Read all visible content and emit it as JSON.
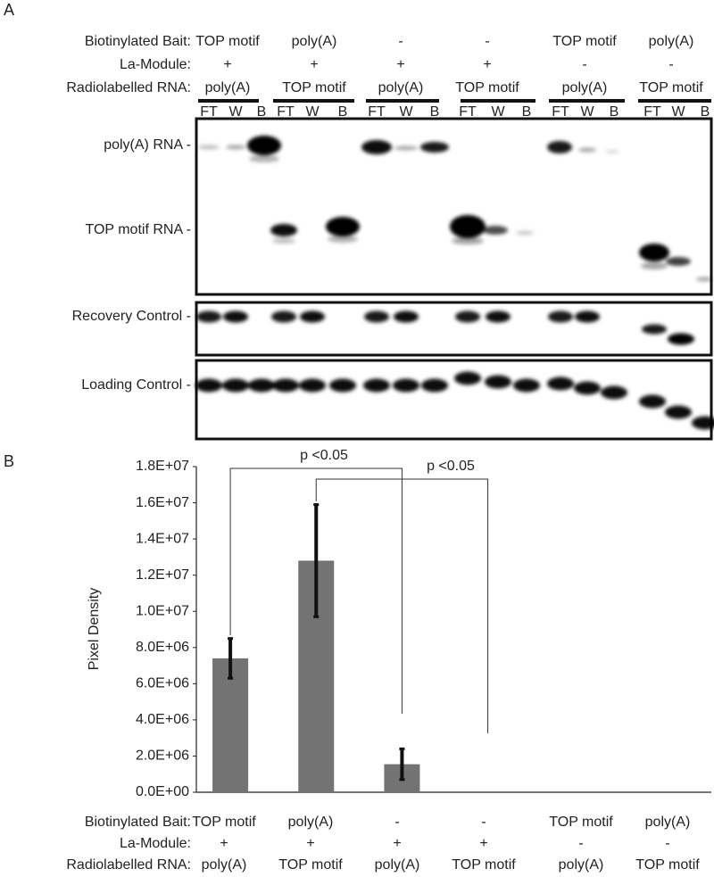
{
  "panel_a": {
    "label": "A",
    "row_labels": [
      "Biotinylated Bait:",
      "La-Module:",
      "Radiolabelled RNA:"
    ],
    "category_rows": [
      [
        "TOP motif",
        "poly(A)",
        "-",
        "-",
        "TOP motif",
        "poly(A)"
      ],
      [
        "+",
        "+",
        "+",
        "+",
        "-",
        "-"
      ],
      [
        "poly(A)",
        "TOP motif",
        "poly(A)",
        "TOP motif",
        "poly(A)",
        "TOP motif"
      ]
    ],
    "lane_labels": [
      "FT",
      "W",
      "B"
    ],
    "band_labels": [
      "poly(A) RNA -",
      "TOP motif RNA -",
      "Recovery Control -",
      "Loading Control -"
    ]
  },
  "chart_data": {
    "type": "bar",
    "label": "B",
    "y_label": "Pixel Density",
    "row_labels": [
      "Biotinylated Bait:",
      "La-Module:",
      "Radiolabelled RNA:"
    ],
    "category_rows": [
      [
        "TOP motif",
        "poly(A)",
        "-",
        "-",
        "TOP motif",
        "poly(A)"
      ],
      [
        "+",
        "+",
        "+",
        "+",
        "-",
        "-"
      ],
      [
        "poly(A)",
        "TOP motif",
        "poly(A)",
        "TOP motif",
        "poly(A)",
        "TOP motif"
      ]
    ],
    "values": [
      7400000,
      12800000,
      1550000,
      0,
      0,
      0
    ],
    "errors": [
      1100000,
      3100000,
      850000,
      null,
      null,
      null
    ],
    "color": "#737373",
    "ylim": [
      0,
      18000000
    ],
    "yticks": [
      {
        "value": 0,
        "label": "0.0E+00"
      },
      {
        "value": 2000000,
        "label": "2.0E+06"
      },
      {
        "value": 4000000,
        "label": "4.0E+06"
      },
      {
        "value": 6000000,
        "label": "6.0E+06"
      },
      {
        "value": 8000000,
        "label": "8.0E+06"
      },
      {
        "value": 10000000,
        "label": "1.0E+07"
      },
      {
        "value": 12000000,
        "label": "1.2E+07"
      },
      {
        "value": 14000000,
        "label": "1.4E+07"
      },
      {
        "value": 16000000,
        "label": "1.6E+07"
      },
      {
        "value": 18000000,
        "label": "1.8E+07"
      }
    ],
    "annotations": [
      "p <0.05",
      "p <0.05"
    ]
  }
}
